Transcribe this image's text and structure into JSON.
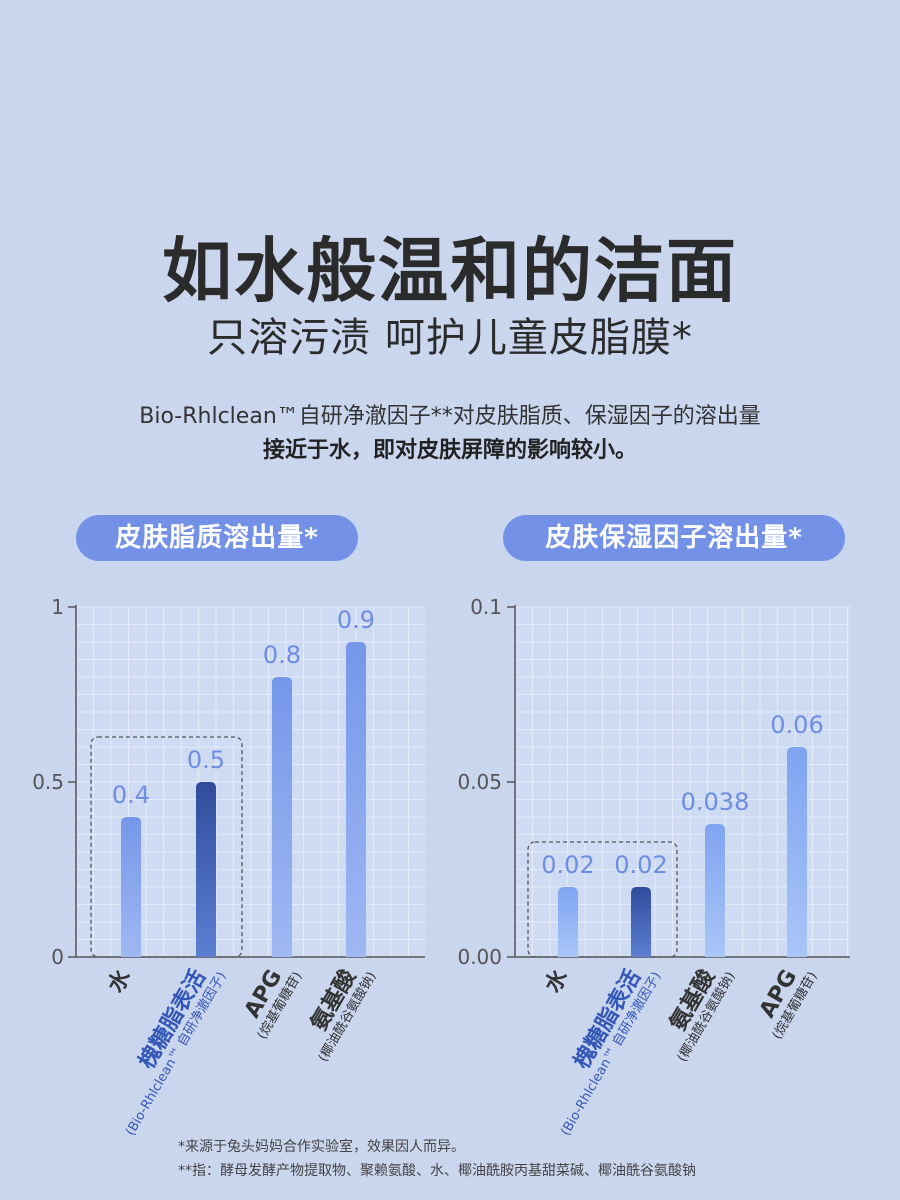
{
  "header": {
    "title": "如水般温和的洁面",
    "subtitle": "只溶污渍 呵护儿童皮脂膜*",
    "description_line1": "Bio-Rhlclean™自研净澈因子**对皮肤脂质、保湿因子的溶出量",
    "description_line2": "接近于水，即对皮肤屏障的影响较小。"
  },
  "colors": {
    "background": "#c9d6ee",
    "pill": "#7391e6",
    "bar_light": "#86a6f0",
    "bar_dark": "#3f5fb4",
    "value_label": "#6c8ee3"
  },
  "chart_data": [
    {
      "type": "bar",
      "title": "皮肤脂质溶出量*",
      "ylim": [
        0,
        1
      ],
      "y_ticks": [
        "0",
        "0.5",
        "1"
      ],
      "grid": true,
      "categories": [
        {
          "name": "水",
          "sub": ""
        },
        {
          "name": "槐糖脂表活",
          "sub": "(Bio-Rhlclean™ 自研净澈因子)"
        },
        {
          "name": "APG",
          "sub": "(烷基葡糖苷)"
        },
        {
          "name": "氨基酸",
          "sub": "(椰油酰谷氨酸钠)"
        }
      ],
      "values": [
        0.4,
        0.5,
        0.8,
        0.9
      ],
      "value_labels": [
        "0.4",
        "0.5",
        "0.8",
        "0.9"
      ],
      "highlight_index": 1,
      "dashed_group": [
        0,
        1
      ]
    },
    {
      "type": "bar",
      "title": "皮肤保湿因子溶出量*",
      "ylim": [
        0,
        0.1
      ],
      "y_ticks": [
        "0.00",
        "0.05",
        "0.1"
      ],
      "grid": true,
      "categories": [
        {
          "name": "水",
          "sub": ""
        },
        {
          "name": "槐糖脂表活",
          "sub": "(Bio-Rhlclean™ 自研净澈因子)"
        },
        {
          "name": "氨基酸",
          "sub": "(椰油酰谷氨酸钠)"
        },
        {
          "name": "APG",
          "sub": "(烷基葡糖苷)"
        }
      ],
      "values": [
        0.02,
        0.02,
        0.038,
        0.06
      ],
      "value_labels": [
        "0.02",
        "0.02",
        "0.038",
        "0.06"
      ],
      "highlight_index": 1,
      "dashed_group": [
        0,
        1
      ]
    }
  ],
  "footnotes": {
    "line1": "*来源于兔头妈妈合作实验室，效果因人而异。",
    "line2": "**指：酵母发酵产物提取物、聚赖氨酸、水、椰油酰胺丙基甜菜碱、椰油酰谷氨酸钠"
  }
}
